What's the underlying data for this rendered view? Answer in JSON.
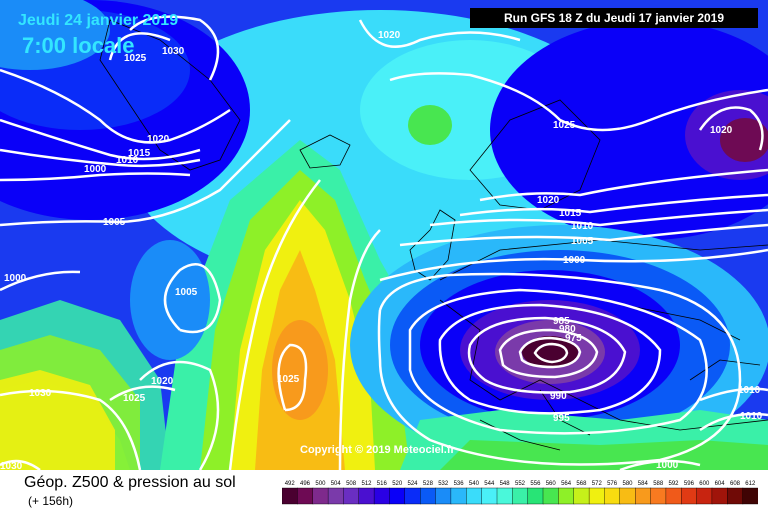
{
  "header": {
    "date": "Jeudi 24 janvier 2019",
    "time": "7:00 locale",
    "run": "Run GFS 18 Z du Jeudi 17 janvier 2019"
  },
  "copyright": "Copyright © 2019 Meteociel.fr",
  "footer": {
    "title": "Géop. Z500 & pression au sol",
    "lead": "(+ 156h)"
  },
  "legend": {
    "values": [
      "492",
      "496",
      "500",
      "504",
      "508",
      "512",
      "516",
      "520",
      "524",
      "528",
      "532",
      "536",
      "540",
      "544",
      "548",
      "552",
      "556",
      "560",
      "564",
      "568",
      "572",
      "576",
      "580",
      "584",
      "588",
      "592",
      "596",
      "600",
      "604",
      "608",
      "612"
    ],
    "colors": [
      "#4a0030",
      "#6e0a54",
      "#7e2a8c",
      "#7a3aaa",
      "#6a2ec2",
      "#4a10d0",
      "#2a00e4",
      "#0a00f8",
      "#0a2cf8",
      "#0a5af6",
      "#1a8cf8",
      "#2ab8fa",
      "#3adcfa",
      "#4af0f8",
      "#4af8da",
      "#3af0a8",
      "#28e476",
      "#48e650",
      "#8ef028",
      "#c6f01a",
      "#f0f010",
      "#f8dc10",
      "#f8bc14",
      "#f89a1c",
      "#f87a20",
      "#f05a1a",
      "#e03a14",
      "#c82410",
      "#a0140a",
      "#700a06",
      "#400404"
    ]
  },
  "isobars": [
    {
      "id": "iso-1030-nw",
      "label": "1030"
    },
    {
      "id": "iso-1025-nw",
      "label": "1025"
    },
    {
      "id": "iso-1020-north",
      "label": "1020"
    },
    {
      "id": "iso-1020-ne",
      "label": "1020"
    },
    {
      "id": "iso-1020-nw",
      "label": "1020"
    },
    {
      "id": "iso-1015-nw",
      "label": "1015"
    },
    {
      "id": "iso-1010-nw",
      "label": "1010"
    },
    {
      "id": "iso-1000-nw",
      "label": "1000"
    },
    {
      "id": "iso-1005-mid",
      "label": "1005"
    },
    {
      "id": "iso-1000-west",
      "label": "1000"
    },
    {
      "id": "iso-1005-atl",
      "label": "1005"
    },
    {
      "id": "iso-1025-norway",
      "label": "1025"
    },
    {
      "id": "iso-1020-low",
      "label": "1020"
    },
    {
      "id": "iso-1015-low",
      "label": "1015"
    },
    {
      "id": "iso-1010-low",
      "label": "1010"
    },
    {
      "id": "iso-1005-low",
      "label": "1005"
    },
    {
      "id": "iso-1000-low",
      "label": "1000"
    },
    {
      "id": "iso-985-low",
      "label": "985"
    },
    {
      "id": "iso-980-low",
      "label": "980"
    },
    {
      "id": "iso-975-low",
      "label": "975"
    },
    {
      "id": "iso-990-low",
      "label": "990"
    },
    {
      "id": "iso-995-low",
      "label": "995"
    },
    {
      "id": "iso-1025-high",
      "label": "1025"
    },
    {
      "id": "iso-1020-sw",
      "label": "1020"
    },
    {
      "id": "iso-1025-sw",
      "label": "1025"
    },
    {
      "id": "iso-1030-sw",
      "label": "1030"
    },
    {
      "id": "iso-1030-corner",
      "label": "1030"
    },
    {
      "id": "iso-1010-east",
      "label": "1010"
    },
    {
      "id": "iso-1010-east2",
      "label": "1010"
    },
    {
      "id": "iso-1000-se",
      "label": "1000"
    }
  ]
}
